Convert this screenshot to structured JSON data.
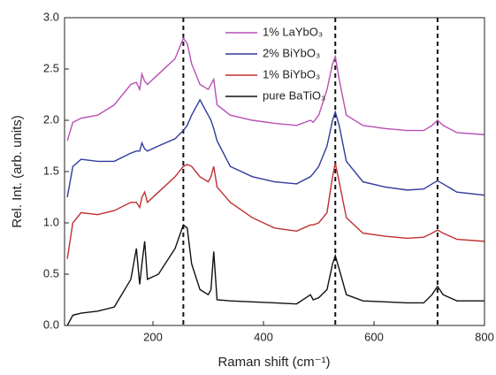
{
  "chart_data": {
    "type": "line",
    "xlabel": "Raman shift (cm⁻¹)",
    "ylabel": "Rel. Int. (arb. units)",
    "xlim": [
      40,
      800
    ],
    "ylim": [
      0,
      3
    ],
    "xticks": [
      200,
      400,
      600,
      800
    ],
    "yticks": [
      {
        "value": 0,
        "label": "0.0"
      },
      {
        "value": 0.5,
        "label": "0.5"
      },
      {
        "value": 1,
        "label": "1.0"
      },
      {
        "value": 1.5,
        "label": "1.5"
      },
      {
        "value": 2,
        "label": "2.0"
      },
      {
        "value": 2.5,
        "label": "2.5"
      },
      {
        "value": 3,
        "label": "3.0"
      }
    ],
    "vlines": [
      255,
      530,
      715
    ],
    "legend": "upper center",
    "x": [
      45,
      55,
      70,
      100,
      130,
      160,
      170,
      176,
      180,
      185,
      190,
      210,
      240,
      255,
      262,
      270,
      285,
      300,
      305,
      310,
      316,
      340,
      380,
      420,
      460,
      485,
      490,
      500,
      515,
      525,
      530,
      537,
      550,
      580,
      620,
      660,
      690,
      705,
      715,
      725,
      750,
      800
    ],
    "series": [
      {
        "name": "1% LaYbO₃",
        "color": "#b94fb5",
        "values": [
          1.8,
          1.98,
          2.02,
          2.05,
          2.15,
          2.35,
          2.37,
          2.3,
          2.45,
          2.38,
          2.35,
          2.45,
          2.6,
          2.8,
          2.75,
          2.55,
          2.35,
          2.3,
          2.35,
          2.4,
          2.15,
          2.05,
          2.0,
          1.97,
          1.95,
          2.0,
          1.98,
          2.05,
          2.3,
          2.55,
          2.62,
          2.4,
          2.05,
          1.95,
          1.92,
          1.9,
          1.9,
          1.95,
          2.0,
          1.95,
          1.88,
          1.86
        ]
      },
      {
        "name": "2% BiYbO₃",
        "color": "#2f3b9a",
        "values": [
          1.25,
          1.55,
          1.62,
          1.6,
          1.6,
          1.68,
          1.7,
          1.7,
          1.78,
          1.72,
          1.7,
          1.75,
          1.82,
          1.9,
          1.95,
          2.05,
          2.2,
          2.05,
          2.0,
          1.92,
          1.8,
          1.55,
          1.45,
          1.4,
          1.38,
          1.45,
          1.48,
          1.55,
          1.75,
          2.0,
          2.08,
          1.95,
          1.6,
          1.4,
          1.35,
          1.32,
          1.33,
          1.38,
          1.41,
          1.38,
          1.3,
          1.27
        ]
      },
      {
        "name": "1% BiYbO₃",
        "color": "#c0302f",
        "values": [
          0.65,
          1.0,
          1.1,
          1.08,
          1.12,
          1.2,
          1.2,
          1.15,
          1.25,
          1.3,
          1.2,
          1.3,
          1.45,
          1.55,
          1.57,
          1.55,
          1.45,
          1.4,
          1.45,
          1.55,
          1.35,
          1.2,
          1.05,
          0.95,
          0.92,
          0.98,
          0.98,
          1.0,
          1.1,
          1.45,
          1.58,
          1.4,
          1.05,
          0.9,
          0.87,
          0.85,
          0.86,
          0.9,
          0.93,
          0.9,
          0.84,
          0.82
        ]
      },
      {
        "name": "pure BaTiO₃",
        "color": "#111111",
        "values": [
          0.0,
          0.1,
          0.12,
          0.14,
          0.18,
          0.45,
          0.75,
          0.4,
          0.6,
          0.82,
          0.45,
          0.5,
          0.75,
          0.98,
          0.95,
          0.6,
          0.35,
          0.3,
          0.35,
          0.72,
          0.25,
          0.24,
          0.23,
          0.22,
          0.21,
          0.3,
          0.25,
          0.27,
          0.35,
          0.6,
          0.68,
          0.55,
          0.3,
          0.24,
          0.23,
          0.22,
          0.22,
          0.3,
          0.38,
          0.3,
          0.24,
          0.24
        ]
      }
    ]
  }
}
